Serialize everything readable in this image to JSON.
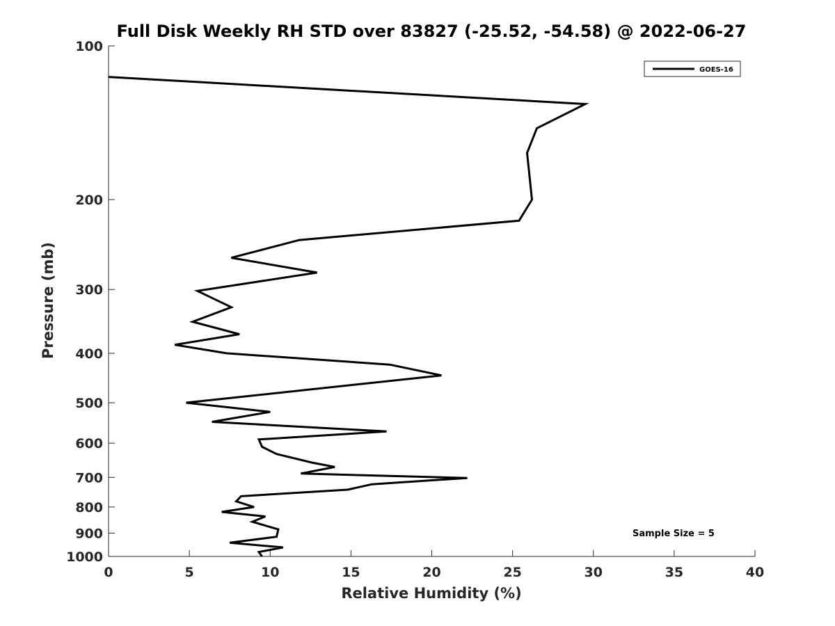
{
  "chart_data": {
    "type": "line",
    "title": "Full Disk Weekly RH STD over 83827 (-25.52, -54.58) @ 2022-06-27",
    "xlabel": "Relative Humidity (%)",
    "ylabel": "Pressure (mb)",
    "xlim": [
      0,
      40
    ],
    "ylim": [
      100,
      1000
    ],
    "y_scale": "log",
    "y_reversed": true,
    "grid": false,
    "legend_position": "top-right",
    "x_ticks": [
      0,
      5,
      10,
      15,
      20,
      25,
      30,
      35,
      40
    ],
    "y_ticks": [
      100,
      200,
      300,
      400,
      500,
      600,
      700,
      800,
      900,
      1000
    ],
    "annotation": "Sample Size = 5",
    "series": [
      {
        "name": "GOES-16",
        "color": "#000000",
        "x": [
          0,
          29.5,
          26.5,
          25.9,
          26.2,
          25.4,
          11.8,
          7.6,
          12.9,
          5.5,
          7.6,
          5.2,
          8.1,
          4.1,
          7.3,
          17.4,
          20.6,
          4.8,
          10.0,
          6.4,
          17.2,
          9.3,
          9.5,
          10.4,
          12.6,
          14.0,
          11.9,
          22.2,
          16.3,
          14.8,
          8.2,
          7.9,
          9.0,
          7.0,
          9.7,
          8.9,
          10.5,
          10.4,
          7.5,
          10.8,
          9.3,
          9.5
        ],
        "y": [
          115,
          130,
          145,
          162,
          200,
          220,
          240,
          260,
          278,
          302,
          325,
          347,
          367,
          385,
          400,
          421,
          442,
          500,
          521,
          545,
          569,
          590,
          610,
          630,
          655,
          668,
          688,
          702,
          722,
          740,
          762,
          780,
          800,
          818,
          835,
          855,
          885,
          915,
          940,
          960,
          980,
          1000
        ]
      }
    ]
  }
}
